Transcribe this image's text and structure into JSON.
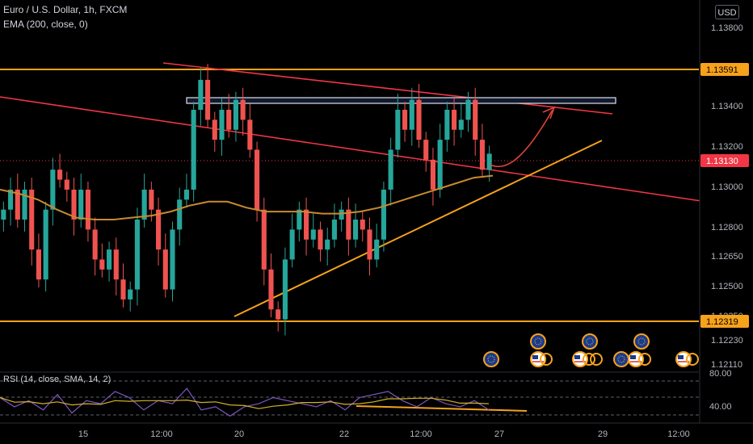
{
  "header": {
    "symbol_line": "Euro / U.S. Dollar, 1h, FXCM",
    "indicator_line": "EMA (200, close, 0)",
    "currency_button": "USD"
  },
  "rsi_panel": {
    "label": "RSI (14, close, SMA, 14, 2)",
    "levels": [
      "80.00",
      "40.00"
    ]
  },
  "colors": {
    "background": "#000000",
    "candle_up": "#26a69a",
    "candle_down": "#ef5350",
    "ema": "#c98a2e",
    "orange_level": "#f7a21b",
    "red_trend": "#f23645",
    "arrow": "#e0443b",
    "rsi_line": "#7e57c2",
    "rsi_ma": "#d4b22a",
    "price_label_bg": "#f23645"
  },
  "chart_data": {
    "type": "candlestick",
    "instrument": "Euro / U.S. Dollar",
    "timeframe": "1h",
    "ylim": [
      1.1211,
      1.1395
    ],
    "y_ticks": [
      "1.13800",
      "1.13400",
      "1.13200",
      "1.13000",
      "1.12800",
      "1.12650",
      "1.12500",
      "1.12350",
      "1.12230",
      "1.12110"
    ],
    "x_ticks": [
      "15",
      "12:00",
      "20",
      "22",
      "12:00",
      "27",
      "29",
      "12:00"
    ],
    "horizontal_levels": [
      {
        "price": 1.13591,
        "label": "1.13591"
      },
      {
        "price": 1.12319,
        "label": "1.12319"
      }
    ],
    "current_price": {
      "price": 1.1313,
      "label": "1.13130"
    },
    "resistance_zone": [
      1.134,
      1.1345
    ],
    "close_path": [
      1.129,
      1.13,
      1.1285,
      1.13,
      1.127,
      1.1255,
      1.129,
      1.131,
      1.1305,
      1.13,
      1.1285,
      1.13,
      1.128,
      1.1265,
      1.126,
      1.127,
      1.1255,
      1.1245,
      1.125,
      1.1285,
      1.13,
      1.129,
      1.127,
      1.125,
      1.128,
      1.1295,
      1.13,
      1.134,
      1.1355,
      1.1335,
      1.1325,
      1.134,
      1.133,
      1.1345,
      1.1335,
      1.132,
      1.129,
      1.126,
      1.124,
      1.1235,
      1.1265,
      1.128,
      1.129,
      1.1275,
      1.128,
      1.127,
      1.1275,
      1.1285,
      1.129,
      1.1275,
      1.1285,
      1.128,
      1.1265,
      1.1275,
      1.13,
      1.132,
      1.134,
      1.133,
      1.1345,
      1.1325,
      1.1315,
      1.13,
      1.1325,
      1.134,
      1.133,
      1.1335,
      1.1345,
      1.1325,
      1.131,
      1.1318
    ],
    "ema200": [
      1.13,
      1.1298,
      1.1295,
      1.129,
      1.1286,
      1.1285,
      1.1285,
      1.1286,
      1.1287,
      1.1289,
      1.1292,
      1.1294,
      1.1294,
      1.1291,
      1.1289,
      1.1289,
      1.1289,
      1.1288,
      1.1288,
      1.1289,
      1.1291,
      1.1294,
      1.1297,
      1.13,
      1.1303,
      1.1306,
      1.1307
    ],
    "rsi": [
      60,
      45,
      55,
      40,
      65,
      35,
      55,
      50,
      70,
      60,
      40,
      55,
      50,
      75,
      40,
      45,
      30,
      45,
      50,
      60,
      55,
      50,
      45,
      55,
      40,
      60,
      65,
      70,
      55,
      45,
      60,
      50,
      45,
      55,
      40
    ],
    "rsi_ylim": [
      20,
      100
    ]
  }
}
